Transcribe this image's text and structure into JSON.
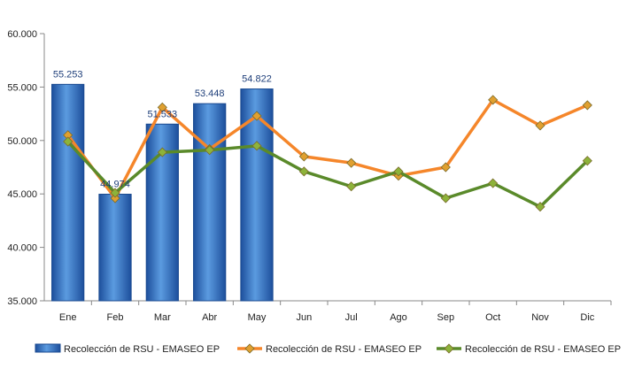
{
  "chart_data": {
    "type": "bar",
    "categories": [
      "Ene",
      "Feb",
      "Mar",
      "Abr",
      "May",
      "Jun",
      "Jul",
      "Ago",
      "Sep",
      "Oct",
      "Nov",
      "Dic"
    ],
    "ylim": [
      35000,
      60000
    ],
    "y_ticks": [
      "35.000",
      "40.000",
      "45.000",
      "50.000",
      "55.000",
      "60.000"
    ],
    "grid": false,
    "legend_position": "bottom",
    "series": [
      {
        "name": "Recolección de RSU - EMASEO EP",
        "type": "bar",
        "color": "#2f6fc4",
        "values": [
          55253,
          44974,
          51533,
          53448,
          54822,
          null,
          null,
          null,
          null,
          null,
          null,
          null
        ],
        "data_labels": [
          "55.253",
          "44.974",
          "51.533",
          "53.448",
          "54.822",
          "",
          "",
          "",
          "",
          "",
          "",
          ""
        ]
      },
      {
        "name": "Recolección de RSU - EMASEO EP",
        "type": "line",
        "color": "#f5862a",
        "marker_color": "#e0a030",
        "values": [
          50500,
          44600,
          53100,
          49200,
          52300,
          48500,
          47900,
          46700,
          47500,
          53800,
          51400,
          53300
        ]
      },
      {
        "name": "Recolección de RSU - EMASEO EP",
        "type": "line",
        "color": "#5a8a2a",
        "marker_color": "#8db33a",
        "values": [
          49900,
          45100,
          48900,
          49100,
          49500,
          47100,
          45700,
          47100,
          44600,
          46000,
          43800,
          48100
        ]
      }
    ]
  }
}
